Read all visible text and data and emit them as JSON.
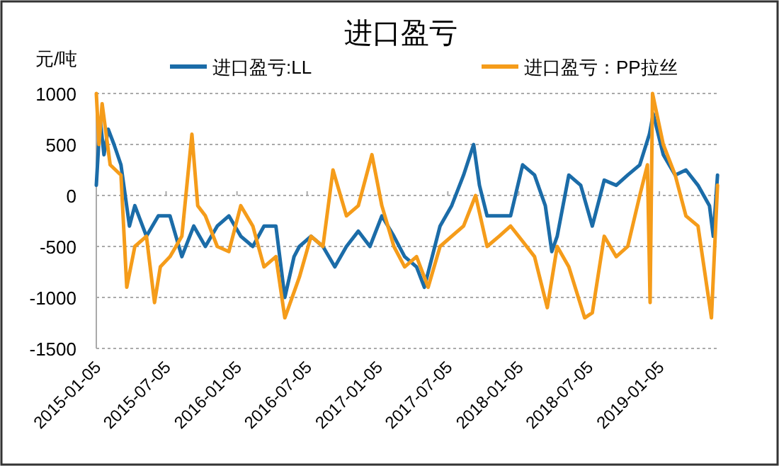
{
  "chart_data": {
    "type": "line",
    "title": "进口盈亏",
    "ylabel": "元/吨",
    "legend": "top",
    "grid": "y",
    "line_style": "solid",
    "xlim": [
      "2015-01-05",
      "2019-06-10"
    ],
    "xticks": [
      "2015-01-05",
      "2015-07-05",
      "2016-01-05",
      "2016-07-05",
      "2017-01-05",
      "2017-07-05",
      "2018-01-05",
      "2018-07-05",
      "2019-01-05"
    ],
    "ylim": [
      -1500,
      1000
    ],
    "yticks": [
      -1500,
      -1000,
      -500,
      0,
      500,
      1000
    ],
    "series": [
      {
        "name": "进口盈亏:LL",
        "color": "#1b6ca8",
        "x": [
          "2015-01-05",
          "2015-01-15",
          "2015-01-25",
          "2015-02-05",
          "2015-02-20",
          "2015-03-10",
          "2015-04-01",
          "2015-04-15",
          "2015-05-15",
          "2015-06-15",
          "2015-07-15",
          "2015-08-15",
          "2015-09-15",
          "2015-10-15",
          "2015-11-15",
          "2015-12-15",
          "2016-01-15",
          "2016-02-15",
          "2016-03-15",
          "2016-04-15",
          "2016-05-08",
          "2016-06-01",
          "2016-06-15",
          "2016-07-15",
          "2016-08-15",
          "2016-09-15",
          "2016-10-15",
          "2016-11-15",
          "2016-12-15",
          "2017-01-15",
          "2017-02-15",
          "2017-03-15",
          "2017-04-15",
          "2017-05-05",
          "2017-06-15",
          "2017-07-15",
          "2017-08-15",
          "2017-09-10",
          "2017-09-25",
          "2017-10-15",
          "2017-11-15",
          "2017-12-15",
          "2018-01-15",
          "2018-02-15",
          "2018-03-15",
          "2018-04-01",
          "2018-04-15",
          "2018-05-15",
          "2018-06-15",
          "2018-07-15",
          "2018-08-15",
          "2018-09-15",
          "2018-10-15",
          "2018-11-15",
          "2018-12-10",
          "2018-12-20",
          "2019-01-15",
          "2019-02-15",
          "2019-03-15",
          "2019-04-15",
          "2019-05-15",
          "2019-05-25",
          "2019-06-05"
        ],
        "values": [
          100,
          750,
          400,
          650,
          500,
          300,
          -300,
          -100,
          -400,
          -200,
          -200,
          -600,
          -300,
          -500,
          -300,
          -200,
          -400,
          -500,
          -300,
          -300,
          -1000,
          -600,
          -500,
          -400,
          -500,
          -700,
          -500,
          -350,
          -500,
          -200,
          -400,
          -600,
          -700,
          -900,
          -300,
          -100,
          200,
          500,
          100,
          -200,
          -200,
          -200,
          300,
          200,
          -100,
          -550,
          -400,
          200,
          100,
          -300,
          150,
          100,
          200,
          300,
          600,
          800,
          400,
          200,
          250,
          100,
          -100,
          -400,
          200
        ]
      },
      {
        "name": "进口盈亏：PP拉丝",
        "color": "#f59c1a",
        "x": [
          "2015-01-05",
          "2015-01-12",
          "2015-01-20",
          "2015-02-10",
          "2015-03-10",
          "2015-03-25",
          "2015-04-15",
          "2015-05-15",
          "2015-06-05",
          "2015-06-20",
          "2015-07-15",
          "2015-08-15",
          "2015-09-10",
          "2015-09-25",
          "2015-10-15",
          "2015-11-15",
          "2015-12-15",
          "2016-01-15",
          "2016-02-15",
          "2016-03-15",
          "2016-04-15",
          "2016-05-08",
          "2016-06-15",
          "2016-07-15",
          "2016-08-15",
          "2016-09-10",
          "2016-10-15",
          "2016-11-15",
          "2016-12-20",
          "2017-01-15",
          "2017-02-15",
          "2017-03-15",
          "2017-04-15",
          "2017-05-15",
          "2017-06-15",
          "2017-07-15",
          "2017-08-15",
          "2017-09-15",
          "2017-10-15",
          "2017-11-15",
          "2017-12-15",
          "2018-01-15",
          "2018-02-15",
          "2018-03-20",
          "2018-04-15",
          "2018-05-15",
          "2018-06-25",
          "2018-07-15",
          "2018-08-15",
          "2018-09-15",
          "2018-10-15",
          "2018-11-15",
          "2018-12-05",
          "2018-12-12",
          "2018-12-18",
          "2019-01-15",
          "2019-02-15",
          "2019-03-15",
          "2019-04-15",
          "2019-05-20",
          "2019-06-05"
        ],
        "values": [
          1000,
          500,
          900,
          300,
          200,
          -900,
          -500,
          -400,
          -1050,
          -700,
          -600,
          -400,
          600,
          -100,
          -200,
          -500,
          -550,
          -100,
          -300,
          -700,
          -600,
          -1200,
          -800,
          -400,
          -500,
          250,
          -200,
          -100,
          400,
          -100,
          -500,
          -700,
          -600,
          -900,
          -500,
          -400,
          -300,
          0,
          -500,
          -400,
          -300,
          -450,
          -600,
          -1100,
          -500,
          -700,
          -1200,
          -1150,
          -400,
          -600,
          -500,
          0,
          300,
          -1050,
          1000,
          500,
          200,
          -200,
          -300,
          -1200,
          100
        ]
      }
    ]
  }
}
